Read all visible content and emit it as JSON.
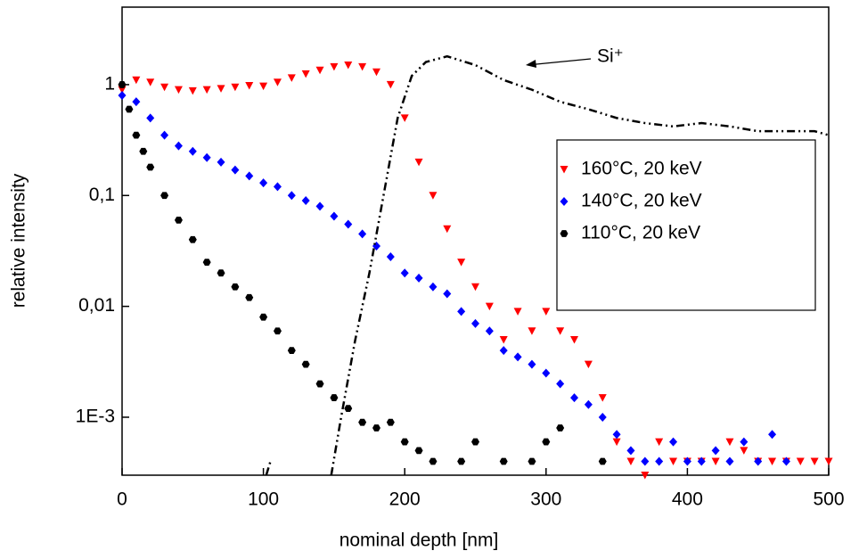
{
  "chart_data": {
    "type": "scatter",
    "log_y": true,
    "x_label": "nominal depth [nm]",
    "y_label": "relative intensity",
    "xlim": [
      0,
      500
    ],
    "xticks": [
      0,
      100,
      200,
      300,
      400,
      500
    ],
    "ylim": [
      0.0003,
      5
    ],
    "yticks": [
      {
        "value": 1,
        "label": "1"
      },
      {
        "value": 0.1,
        "label": "0,1"
      },
      {
        "value": 0.01,
        "label": "0,01"
      },
      {
        "value": 0.001,
        "label": "1E-3"
      }
    ],
    "legend_position": "right",
    "annotation": "Si⁺",
    "series": [
      {
        "name": "160°C, 20 keV",
        "color": "#ff0000",
        "marker": "triangle-down",
        "x": [
          0,
          10,
          20,
          30,
          40,
          50,
          60,
          70,
          80,
          90,
          100,
          110,
          120,
          130,
          140,
          150,
          160,
          170,
          180,
          190,
          200,
          210,
          220,
          230,
          240,
          250,
          260,
          270,
          280,
          290,
          300,
          310,
          320,
          330,
          340,
          350,
          360,
          370,
          380,
          390,
          400,
          410,
          420,
          430,
          440,
          450,
          460,
          470,
          480,
          490,
          500
        ],
        "values": [
          0.9,
          1.1,
          1.05,
          0.95,
          0.9,
          0.88,
          0.9,
          0.92,
          0.95,
          0.98,
          0.97,
          1.05,
          1.15,
          1.25,
          1.35,
          1.45,
          1.5,
          1.45,
          1.3,
          1.0,
          0.5,
          0.2,
          0.1,
          0.05,
          0.025,
          0.015,
          0.01,
          0.005,
          0.009,
          0.006,
          0.009,
          0.006,
          0.005,
          0.003,
          0.0015,
          0.0006,
          0.0004,
          0.0003,
          0.0006,
          0.0004,
          0.0004,
          0.0004,
          0.0004,
          0.0006,
          0.0005,
          0.0004,
          0.0004,
          0.0004,
          0.0004,
          0.0004,
          0.0004
        ]
      },
      {
        "name": "140°C, 20 keV",
        "color": "#0000ff",
        "marker": "diamond",
        "x": [
          0,
          10,
          20,
          30,
          40,
          50,
          60,
          70,
          80,
          90,
          100,
          110,
          120,
          130,
          140,
          150,
          160,
          170,
          180,
          190,
          200,
          210,
          220,
          230,
          240,
          250,
          260,
          270,
          280,
          290,
          300,
          310,
          320,
          330,
          340,
          350,
          360,
          370,
          380,
          390,
          400,
          410,
          420,
          430,
          440,
          450,
          460,
          470
        ],
        "values": [
          0.8,
          0.7,
          0.5,
          0.35,
          0.28,
          0.25,
          0.22,
          0.2,
          0.17,
          0.15,
          0.13,
          0.12,
          0.1,
          0.09,
          0.08,
          0.065,
          0.055,
          0.045,
          0.035,
          0.028,
          0.02,
          0.018,
          0.015,
          0.013,
          0.009,
          0.007,
          0.006,
          0.004,
          0.0035,
          0.003,
          0.0025,
          0.002,
          0.0015,
          0.0013,
          0.001,
          0.0007,
          0.0005,
          0.0004,
          0.0004,
          0.0006,
          0.0004,
          0.0004,
          0.0005,
          0.0004,
          0.0006,
          0.0004,
          0.0007,
          0.0004
        ]
      },
      {
        "name": "110°C, 20 keV",
        "color": "#000000",
        "marker": "hexagon",
        "x": [
          0,
          5,
          10,
          15,
          20,
          30,
          40,
          50,
          60,
          70,
          80,
          90,
          100,
          110,
          120,
          130,
          140,
          150,
          160,
          170,
          180,
          190,
          200,
          210,
          220,
          240,
          250,
          270,
          290,
          300,
          310,
          340
        ],
        "values": [
          1.0,
          0.6,
          0.35,
          0.25,
          0.18,
          0.1,
          0.06,
          0.04,
          0.025,
          0.02,
          0.015,
          0.012,
          0.008,
          0.006,
          0.004,
          0.003,
          0.002,
          0.0015,
          0.0012,
          0.0009,
          0.0008,
          0.0009,
          0.0006,
          0.0005,
          0.0004,
          0.0004,
          0.0006,
          0.0004,
          0.0004,
          0.0006,
          0.0008,
          0.0004
        ]
      },
      {
        "color": "#000000",
        "line": "dash-dot",
        "x": [
          102,
          105,
          null,
          148,
          155,
          165,
          175,
          185,
          195,
          205,
          215,
          230,
          250,
          270,
          290,
          310,
          330,
          350,
          370,
          390,
          410,
          430,
          450,
          470,
          490,
          500
        ],
        "values": [
          0.0003,
          0.0004,
          null,
          0.0003,
          0.001,
          0.005,
          0.02,
          0.1,
          0.5,
          1.2,
          1.6,
          1.8,
          1.5,
          1.1,
          0.9,
          0.7,
          0.6,
          0.5,
          0.45,
          0.42,
          0.45,
          0.42,
          0.38,
          0.38,
          0.38,
          0.35
        ]
      }
    ]
  }
}
